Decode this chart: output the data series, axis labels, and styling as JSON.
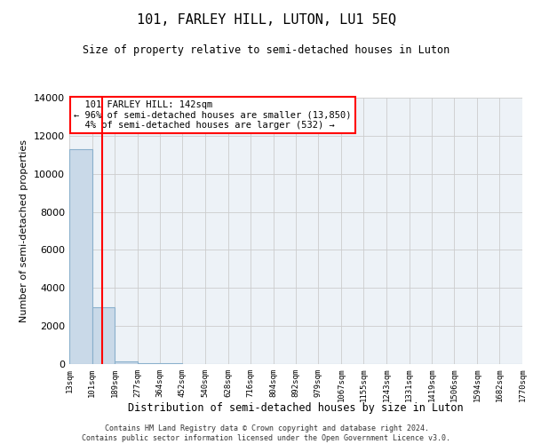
{
  "title": "101, FARLEY HILL, LUTON, LU1 5EQ",
  "subtitle": "Size of property relative to semi-detached houses in Luton",
  "xlabel": "Distribution of semi-detached houses by size in Luton",
  "ylabel": "Number of semi-detached properties",
  "property_label": "101 FARLEY HILL: 142sqm",
  "pct_smaller": 96,
  "n_smaller": 13850,
  "pct_larger": 4,
  "n_larger": 532,
  "bin_edges": [
    13,
    101,
    189,
    277,
    364,
    452,
    540,
    628,
    716,
    804,
    892,
    979,
    1067,
    1155,
    1243,
    1331,
    1419,
    1506,
    1594,
    1682,
    1770
  ],
  "bin_counts": [
    11300,
    3000,
    150,
    50,
    30,
    20,
    15,
    12,
    10,
    8,
    7,
    6,
    5,
    5,
    4,
    4,
    3,
    3,
    2,
    2
  ],
  "bar_color": "#c9d9e8",
  "bar_edge_color": "#8ab0cc",
  "vline_color": "red",
  "vline_x": 142,
  "annotation_box_color": "white",
  "annotation_box_edge_color": "red",
  "ylim": [
    0,
    14000
  ],
  "yticks": [
    0,
    2000,
    4000,
    6000,
    8000,
    10000,
    12000,
    14000
  ],
  "footer_line1": "Contains HM Land Registry data © Crown copyright and database right 2024.",
  "footer_line2": "Contains public sector information licensed under the Open Government Licence v3.0.",
  "grid_color": "#cccccc",
  "bg_color": "#edf2f7"
}
